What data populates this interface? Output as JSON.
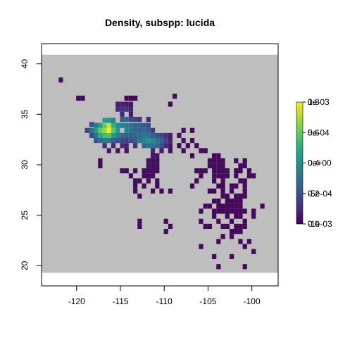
{
  "chart_data": {
    "type": "heatmap",
    "title": "Density, subspp: lucida",
    "xlabel": "",
    "ylabel": "",
    "xlim": [
      -124,
      -97
    ],
    "ylim": [
      18,
      42
    ],
    "x_ticks": [
      -120,
      -115,
      -110,
      -105,
      -100
    ],
    "y_ticks": [
      20,
      25,
      30,
      35,
      40
    ],
    "x_tick_labels": [
      "-120",
      "-115",
      "-110",
      "-105",
      "-100"
    ],
    "y_tick_labels": [
      "20",
      "25",
      "30",
      "35",
      "40"
    ],
    "background_extent": {
      "x": [
        -124,
        -97
      ],
      "y": [
        19.3,
        40.9
      ]
    },
    "background_color": "#bebebe",
    "cell_size": 0.5,
    "palette": "viridis",
    "cells": [
      [
        -121.8,
        38.4,
        0.02
      ],
      [
        -119.8,
        36.6,
        0.02
      ],
      [
        -119.3,
        36.6,
        0.02
      ],
      [
        -114.3,
        36.6,
        0.02
      ],
      [
        -113.8,
        36.6,
        0.02
      ],
      [
        -113.3,
        36.6,
        0.02
      ],
      [
        -108.8,
        36.8,
        0.02
      ],
      [
        -109.3,
        36.0,
        0.02
      ],
      [
        -115.3,
        36.0,
        0.08
      ],
      [
        -114.8,
        36.0,
        0.1
      ],
      [
        -114.3,
        36.0,
        0.08
      ],
      [
        -113.8,
        36.0,
        0.06
      ],
      [
        -115.3,
        35.5,
        0.12
      ],
      [
        -114.8,
        35.5,
        0.15
      ],
      [
        -114.3,
        35.5,
        0.14
      ],
      [
        -113.8,
        35.5,
        0.1
      ],
      [
        -114.8,
        35.0,
        0.1
      ],
      [
        -113.8,
        35.0,
        0.08
      ],
      [
        -114.8,
        34.5,
        0.3
      ],
      [
        -114.3,
        34.5,
        0.32
      ],
      [
        -113.8,
        34.5,
        0.22
      ],
      [
        -113.3,
        34.5,
        0.2
      ],
      [
        -112.8,
        34.5,
        0.14
      ],
      [
        -111.8,
        34.5,
        0.12
      ],
      [
        -116.8,
        34.4,
        0.55
      ],
      [
        -116.3,
        34.4,
        0.55
      ],
      [
        -115.8,
        34.4,
        0.45
      ],
      [
        -118.3,
        34.0,
        0.25
      ],
      [
        -117.8,
        33.9,
        0.4
      ],
      [
        -117.3,
        33.9,
        0.55
      ],
      [
        -116.8,
        33.8,
        0.75
      ],
      [
        -116.3,
        33.8,
        0.92
      ],
      [
        -115.8,
        33.9,
        0.65
      ],
      [
        -115.3,
        33.9,
        0.5
      ],
      [
        -114.8,
        33.9,
        0.45
      ],
      [
        -114.3,
        33.9,
        0.42
      ],
      [
        -113.8,
        33.9,
        0.38
      ],
      [
        -113.3,
        33.9,
        0.32
      ],
      [
        -112.8,
        33.9,
        0.3
      ],
      [
        -112.3,
        33.9,
        0.3
      ],
      [
        -111.8,
        33.9,
        0.22
      ],
      [
        -118.8,
        33.4,
        0.2
      ],
      [
        -118.3,
        33.4,
        0.35
      ],
      [
        -117.8,
        33.4,
        0.55
      ],
      [
        -117.3,
        33.4,
        0.75
      ],
      [
        -116.8,
        33.4,
        0.85
      ],
      [
        -116.3,
        33.4,
        1.0
      ],
      [
        -115.8,
        33.4,
        0.75
      ],
      [
        -115.3,
        33.4,
        0.55
      ],
      [
        -114.3,
        33.4,
        0.45
      ],
      [
        -113.8,
        33.4,
        0.4
      ],
      [
        -113.3,
        33.4,
        0.32
      ],
      [
        -112.8,
        33.4,
        0.3
      ],
      [
        -112.3,
        33.4,
        0.34
      ],
      [
        -111.8,
        33.4,
        0.3
      ],
      [
        -111.3,
        33.4,
        0.18
      ],
      [
        -118.3,
        32.9,
        0.22
      ],
      [
        -117.8,
        32.9,
        0.38
      ],
      [
        -117.3,
        32.9,
        0.6
      ],
      [
        -116.8,
        32.9,
        0.7
      ],
      [
        -116.3,
        32.9,
        0.72
      ],
      [
        -115.8,
        32.9,
        0.55
      ],
      [
        -115.3,
        32.9,
        0.42
      ],
      [
        -114.8,
        32.9,
        0.35
      ],
      [
        -114.3,
        32.9,
        0.32
      ],
      [
        -113.8,
        32.9,
        0.3
      ],
      [
        -113.3,
        32.9,
        0.32
      ],
      [
        -112.8,
        32.9,
        0.36
      ],
      [
        -112.3,
        32.9,
        0.4
      ],
      [
        -111.8,
        32.9,
        0.38
      ],
      [
        -111.3,
        32.9,
        0.3
      ],
      [
        -110.8,
        32.9,
        0.25
      ],
      [
        -110.3,
        32.9,
        0.2
      ],
      [
        -109.8,
        32.9,
        0.14
      ],
      [
        -109.3,
        32.9,
        0.08
      ],
      [
        -108.3,
        32.9,
        0.05
      ],
      [
        -107.8,
        33.4,
        0.05
      ],
      [
        -106.8,
        33.4,
        0.02
      ],
      [
        -117.8,
        32.4,
        0.25
      ],
      [
        -117.3,
        32.4,
        0.35
      ],
      [
        -116.8,
        32.4,
        0.4
      ],
      [
        -116.3,
        32.4,
        0.38
      ],
      [
        -115.8,
        32.4,
        0.3
      ],
      [
        -115.3,
        32.4,
        0.25
      ],
      [
        -114.8,
        32.4,
        0.22
      ],
      [
        -114.3,
        32.4,
        0.2
      ],
      [
        -113.8,
        32.4,
        0.24
      ],
      [
        -113.3,
        32.4,
        0.28
      ],
      [
        -112.8,
        32.4,
        0.4
      ],
      [
        -112.3,
        32.4,
        0.48
      ],
      [
        -111.8,
        32.4,
        0.52
      ],
      [
        -111.3,
        32.4,
        0.46
      ],
      [
        -110.8,
        32.4,
        0.38
      ],
      [
        -110.3,
        32.4,
        0.3
      ],
      [
        -109.8,
        32.4,
        0.2
      ],
      [
        -109.3,
        32.4,
        0.1
      ],
      [
        -107.8,
        32.4,
        0.05
      ],
      [
        -106.8,
        32.4,
        0.03
      ],
      [
        -116.8,
        31.9,
        0.12
      ],
      [
        -115.8,
        31.9,
        0.1
      ],
      [
        -114.8,
        31.9,
        0.12
      ],
      [
        -114.3,
        31.9,
        0.1
      ],
      [
        -113.3,
        31.9,
        0.14
      ],
      [
        -112.3,
        31.9,
        0.3
      ],
      [
        -111.8,
        31.9,
        0.38
      ],
      [
        -111.3,
        31.9,
        0.36
      ],
      [
        -110.8,
        31.9,
        0.32
      ],
      [
        -110.3,
        31.9,
        0.22
      ],
      [
        -109.8,
        31.9,
        0.12
      ],
      [
        -109.3,
        31.9,
        0.06
      ],
      [
        -108.3,
        31.9,
        0.03
      ],
      [
        -107.3,
        31.9,
        0.03
      ],
      [
        -106.3,
        31.9,
        0.02
      ],
      [
        -116.3,
        31.4,
        0.06
      ],
      [
        -115.3,
        31.4,
        0.05
      ],
      [
        -114.3,
        31.4,
        0.05
      ],
      [
        -111.3,
        31.4,
        0.1
      ],
      [
        -110.3,
        31.4,
        0.08
      ],
      [
        -109.3,
        31.4,
        0.04
      ],
      [
        -107.8,
        31.4,
        0.03
      ],
      [
        -105.8,
        31.4,
        0.02
      ],
      [
        -105.3,
        31.4,
        0.02
      ],
      [
        -111.3,
        30.9,
        0.06
      ],
      [
        -110.8,
        30.9,
        0.05
      ],
      [
        -106.8,
        30.9,
        0.02
      ],
      [
        -104.3,
        30.9,
        0.02
      ],
      [
        -103.8,
        30.9,
        0.02
      ],
      [
        -117.3,
        30.4,
        0.02
      ],
      [
        -111.8,
        30.4,
        0.04
      ],
      [
        -111.3,
        30.4,
        0.04
      ],
      [
        -110.8,
        30.4,
        0.04
      ],
      [
        -104.8,
        30.4,
        0.03
      ],
      [
        -104.3,
        30.4,
        0.03
      ],
      [
        -103.8,
        30.4,
        0.03
      ],
      [
        -103.3,
        30.4,
        0.03
      ],
      [
        -101.8,
        30.4,
        0.02
      ],
      [
        -100.8,
        30.4,
        0.02
      ],
      [
        -117.3,
        29.9,
        0.02
      ],
      [
        -111.8,
        29.9,
        0.04
      ],
      [
        -111.3,
        29.9,
        0.04
      ],
      [
        -110.8,
        29.9,
        0.04
      ],
      [
        -104.8,
        29.9,
        0.03
      ],
      [
        -104.3,
        29.9,
        0.03
      ],
      [
        -103.8,
        29.9,
        0.03
      ],
      [
        -103.3,
        29.9,
        0.03
      ],
      [
        -101.3,
        29.9,
        0.02
      ],
      [
        -100.8,
        29.9,
        0.02
      ],
      [
        -114.8,
        29.4,
        0.03
      ],
      [
        -114.3,
        29.4,
        0.03
      ],
      [
        -113.3,
        29.4,
        0.03
      ],
      [
        -112.3,
        29.4,
        0.03
      ],
      [
        -111.8,
        29.4,
        0.04
      ],
      [
        -111.3,
        29.4,
        0.04
      ],
      [
        -110.8,
        29.4,
        0.03
      ],
      [
        -106.3,
        29.4,
        0.02
      ],
      [
        -105.8,
        29.4,
        0.03
      ],
      [
        -105.3,
        29.4,
        0.03
      ],
      [
        -104.3,
        29.4,
        0.03
      ],
      [
        -103.8,
        29.4,
        0.03
      ],
      [
        -103.3,
        29.4,
        0.03
      ],
      [
        -102.8,
        29.4,
        0.03
      ],
      [
        -101.8,
        29.4,
        0.02
      ],
      [
        -101.3,
        29.4,
        0.02
      ],
      [
        -100.3,
        29.4,
        0.02
      ],
      [
        -113.8,
        28.9,
        0.03
      ],
      [
        -112.3,
        28.9,
        0.03
      ],
      [
        -111.8,
        28.9,
        0.03
      ],
      [
        -111.3,
        28.9,
        0.03
      ],
      [
        -105.8,
        28.9,
        0.02
      ],
      [
        -104.3,
        28.9,
        0.03
      ],
      [
        -103.8,
        28.9,
        0.03
      ],
      [
        -103.3,
        28.9,
        0.03
      ],
      [
        -102.8,
        28.9,
        0.03
      ],
      [
        -101.8,
        28.9,
        0.02
      ],
      [
        -100.3,
        28.9,
        0.02
      ],
      [
        -99.8,
        28.9,
        0.02
      ],
      [
        -113.3,
        28.4,
        0.03
      ],
      [
        -112.8,
        28.4,
        0.03
      ],
      [
        -111.8,
        28.4,
        0.03
      ],
      [
        -110.8,
        28.4,
        0.03
      ],
      [
        -106.3,
        28.4,
        0.02
      ],
      [
        -104.3,
        28.4,
        0.02
      ],
      [
        -103.3,
        28.4,
        0.02
      ],
      [
        -101.3,
        28.4,
        0.02
      ],
      [
        -100.8,
        28.4,
        0.02
      ],
      [
        -113.3,
        27.9,
        0.03
      ],
      [
        -112.3,
        27.9,
        0.03
      ],
      [
        -110.8,
        27.9,
        0.02
      ],
      [
        -106.8,
        27.9,
        0.02
      ],
      [
        -103.8,
        27.9,
        0.02
      ],
      [
        -103.3,
        27.9,
        0.02
      ],
      [
        -102.3,
        27.9,
        0.02
      ],
      [
        -101.8,
        27.9,
        0.02
      ],
      [
        -100.8,
        27.9,
        0.02
      ],
      [
        -113.3,
        27.4,
        0.03
      ],
      [
        -111.3,
        27.4,
        0.02
      ],
      [
        -110.3,
        27.4,
        0.02
      ],
      [
        -109.3,
        27.4,
        0.02
      ],
      [
        -104.8,
        27.4,
        0.02
      ],
      [
        -104.3,
        27.4,
        0.02
      ],
      [
        -103.3,
        27.4,
        0.02
      ],
      [
        -102.3,
        27.4,
        0.02
      ],
      [
        -100.8,
        27.4,
        0.02
      ],
      [
        -112.8,
        26.9,
        0.02
      ],
      [
        -103.3,
        26.9,
        0.02
      ],
      [
        -102.8,
        26.9,
        0.02
      ],
      [
        -101.8,
        26.9,
        0.02
      ],
      [
        -101.3,
        26.9,
        0.02
      ],
      [
        -100.8,
        26.9,
        0.02
      ],
      [
        -104.3,
        26.4,
        0.02
      ],
      [
        -103.8,
        26.4,
        0.02
      ],
      [
        -102.8,
        26.4,
        0.02
      ],
      [
        -102.3,
        26.4,
        0.02
      ],
      [
        -101.8,
        26.4,
        0.02
      ],
      [
        -101.3,
        26.4,
        0.02
      ],
      [
        -105.3,
        25.9,
        0.02
      ],
      [
        -104.8,
        25.9,
        0.02
      ],
      [
        -103.8,
        25.9,
        0.02
      ],
      [
        -103.3,
        25.9,
        0.02
      ],
      [
        -102.8,
        25.9,
        0.02
      ],
      [
        -102.3,
        25.9,
        0.02
      ],
      [
        -101.8,
        25.9,
        0.02
      ],
      [
        -101.3,
        25.9,
        0.02
      ],
      [
        -98.8,
        25.9,
        0.02
      ],
      [
        -105.8,
        25.4,
        0.02
      ],
      [
        -104.3,
        25.4,
        0.02
      ],
      [
        -103.8,
        25.4,
        0.02
      ],
      [
        -103.3,
        25.4,
        0.02
      ],
      [
        -102.8,
        25.4,
        0.02
      ],
      [
        -102.3,
        25.4,
        0.02
      ],
      [
        -101.8,
        25.4,
        0.02
      ],
      [
        -101.3,
        25.4,
        0.02
      ],
      [
        -100.8,
        25.4,
        0.02
      ],
      [
        -99.8,
        25.4,
        0.02
      ],
      [
        -104.3,
        24.9,
        0.02
      ],
      [
        -102.8,
        24.9,
        0.02
      ],
      [
        -101.8,
        24.9,
        0.02
      ],
      [
        -101.3,
        24.9,
        0.02
      ],
      [
        -99.8,
        24.9,
        0.02
      ],
      [
        -109.8,
        24.4,
        0.02
      ],
      [
        -105.8,
        24.4,
        0.02
      ],
      [
        -103.8,
        24.4,
        0.02
      ],
      [
        -102.3,
        24.4,
        0.02
      ],
      [
        -100.8,
        24.4,
        0.02
      ],
      [
        -112.8,
        24.4,
        0.02
      ],
      [
        -112.8,
        23.9,
        0.02
      ],
      [
        -109.3,
        23.9,
        0.02
      ],
      [
        -105.3,
        23.9,
        0.02
      ],
      [
        -104.8,
        23.9,
        0.02
      ],
      [
        -103.3,
        23.9,
        0.02
      ],
      [
        -102.8,
        23.9,
        0.02
      ],
      [
        -101.8,
        23.9,
        0.02
      ],
      [
        -101.3,
        23.9,
        0.02
      ],
      [
        -100.8,
        23.9,
        0.02
      ],
      [
        -109.8,
        23.4,
        0.02
      ],
      [
        -102.3,
        23.4,
        0.02
      ],
      [
        -101.8,
        23.4,
        0.02
      ],
      [
        -101.3,
        23.4,
        0.02
      ],
      [
        -103.3,
        22.9,
        0.02
      ],
      [
        -102.3,
        22.9,
        0.02
      ],
      [
        -103.8,
        22.4,
        0.02
      ],
      [
        -101.3,
        22.4,
        0.02
      ],
      [
        -100.3,
        22.4,
        0.02
      ],
      [
        -105.8,
        21.9,
        0.02
      ],
      [
        -100.8,
        21.9,
        0.02
      ],
      [
        -99.8,
        21.4,
        0.02
      ],
      [
        -104.3,
        20.9,
        0.02
      ],
      [
        -102.3,
        20.9,
        0.02
      ],
      [
        -103.8,
        19.9,
        0.02
      ],
      [
        -100.8,
        19.9,
        0.02
      ]
    ],
    "legend": {
      "placement": "right",
      "labels_a": [
        "1e-03",
        "5e-04",
        "0e+00",
        "-5e-04",
        "-1e-03"
      ],
      "labels_b": [
        "0.8",
        "0.6",
        "0.4",
        "0.2",
        "0.0"
      ]
    }
  }
}
